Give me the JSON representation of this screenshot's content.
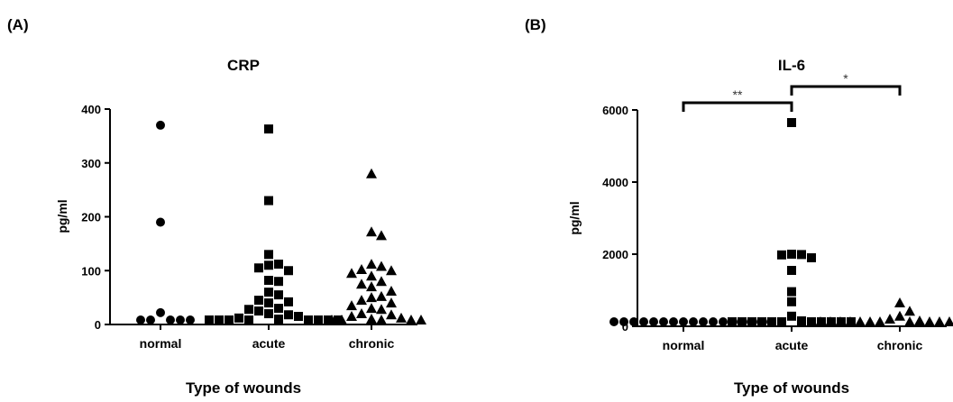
{
  "panel_labels": [
    "(A)",
    "(B)"
  ],
  "chart_data": [
    {
      "type": "scatter",
      "panel": "(A)",
      "title": "CRP",
      "xlabel": "Type of wounds",
      "ylabel": "pg/ml",
      "ylim": [
        0,
        400
      ],
      "yticks": [
        0,
        100,
        200,
        300,
        400
      ],
      "categories": [
        "normal",
        "acute",
        "chronic"
      ],
      "series": [
        {
          "category": "normal",
          "marker": "circle",
          "values": [
            370,
            190,
            22,
            3,
            0,
            0,
            0,
            0
          ]
        },
        {
          "category": "acute",
          "marker": "square",
          "values": [
            363,
            230,
            130,
            112,
            110,
            105,
            100,
            82,
            80,
            60,
            55,
            45,
            42,
            40,
            30,
            28,
            25,
            20,
            18,
            15,
            12,
            10,
            8,
            8,
            6,
            5,
            5,
            4,
            3,
            2
          ]
        },
        {
          "category": "chronic",
          "marker": "triangle",
          "values": [
            280,
            172,
            165,
            112,
            108,
            102,
            100,
            95,
            90,
            80,
            75,
            70,
            62,
            52,
            50,
            45,
            40,
            35,
            30,
            28,
            20,
            18,
            15,
            12,
            10,
            8,
            5,
            5,
            3,
            2
          ]
        }
      ]
    },
    {
      "type": "scatter",
      "panel": "(B)",
      "title": "IL-6",
      "xlabel": "Type of wounds",
      "ylabel": "pg/ml",
      "ylim": [
        0,
        6000
      ],
      "yticks": [
        0,
        2000,
        4000,
        6000
      ],
      "categories": [
        "normal",
        "acute",
        "chronic"
      ],
      "significance": [
        {
          "from": "normal",
          "to": "acute",
          "label": "**"
        },
        {
          "from": "acute",
          "to": "chronic",
          "label": "*"
        }
      ],
      "series": [
        {
          "category": "normal",
          "marker": "circle",
          "values": [
            20,
            15,
            12,
            10,
            10,
            8,
            8,
            6,
            5,
            5,
            4,
            3,
            3,
            2,
            2,
            1
          ]
        },
        {
          "category": "acute",
          "marker": "square",
          "values": [
            5650,
            2000,
            1990,
            1980,
            1900,
            1550,
            960,
            680,
            280,
            150,
            120,
            100,
            80,
            60,
            50,
            40,
            30,
            20,
            15,
            10,
            5
          ]
        },
        {
          "category": "chronic",
          "marker": "triangle",
          "values": [
            650,
            420,
            280,
            200,
            150,
            120,
            100,
            80,
            60,
            50,
            40,
            35,
            30,
            20,
            15,
            10,
            8,
            5,
            3,
            2
          ]
        }
      ]
    }
  ]
}
